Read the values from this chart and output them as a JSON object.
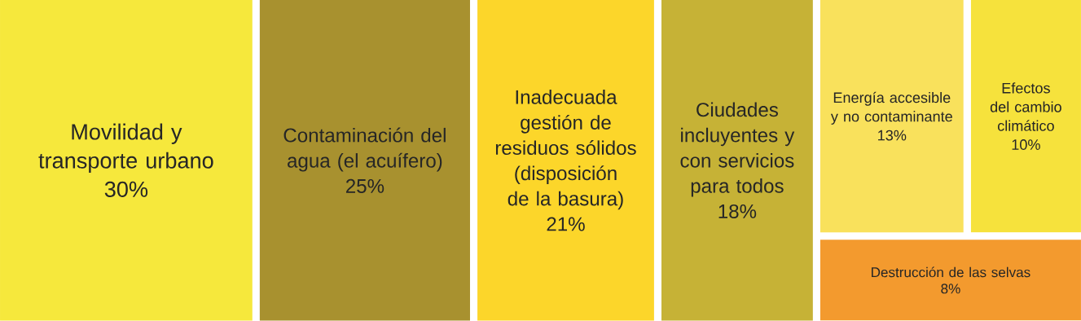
{
  "chart_data": {
    "type": "other",
    "categories": [
      "Movilidad y transporte urbano",
      "Contaminación del agua (el acuífero)",
      "Inadecuada gestión de residuos sólidos (disposición de la basura)",
      "Ciudades incluyentes y con servicios para todos",
      "Energía accesible y no contaminante",
      "Efectos del cambio climático",
      "Destrucción de las selvas"
    ],
    "values": [
      30,
      25,
      21,
      18,
      13,
      10,
      8
    ],
    "value_labels": [
      "30%",
      "25%",
      "21%",
      "18%",
      "13%",
      "10%",
      "8%"
    ],
    "colors": [
      "#f6e83c",
      "#a8912f",
      "#fcd62a",
      "#c6b236",
      "#f9e15c",
      "#f6e23c",
      "#f39a2e"
    ]
  }
}
